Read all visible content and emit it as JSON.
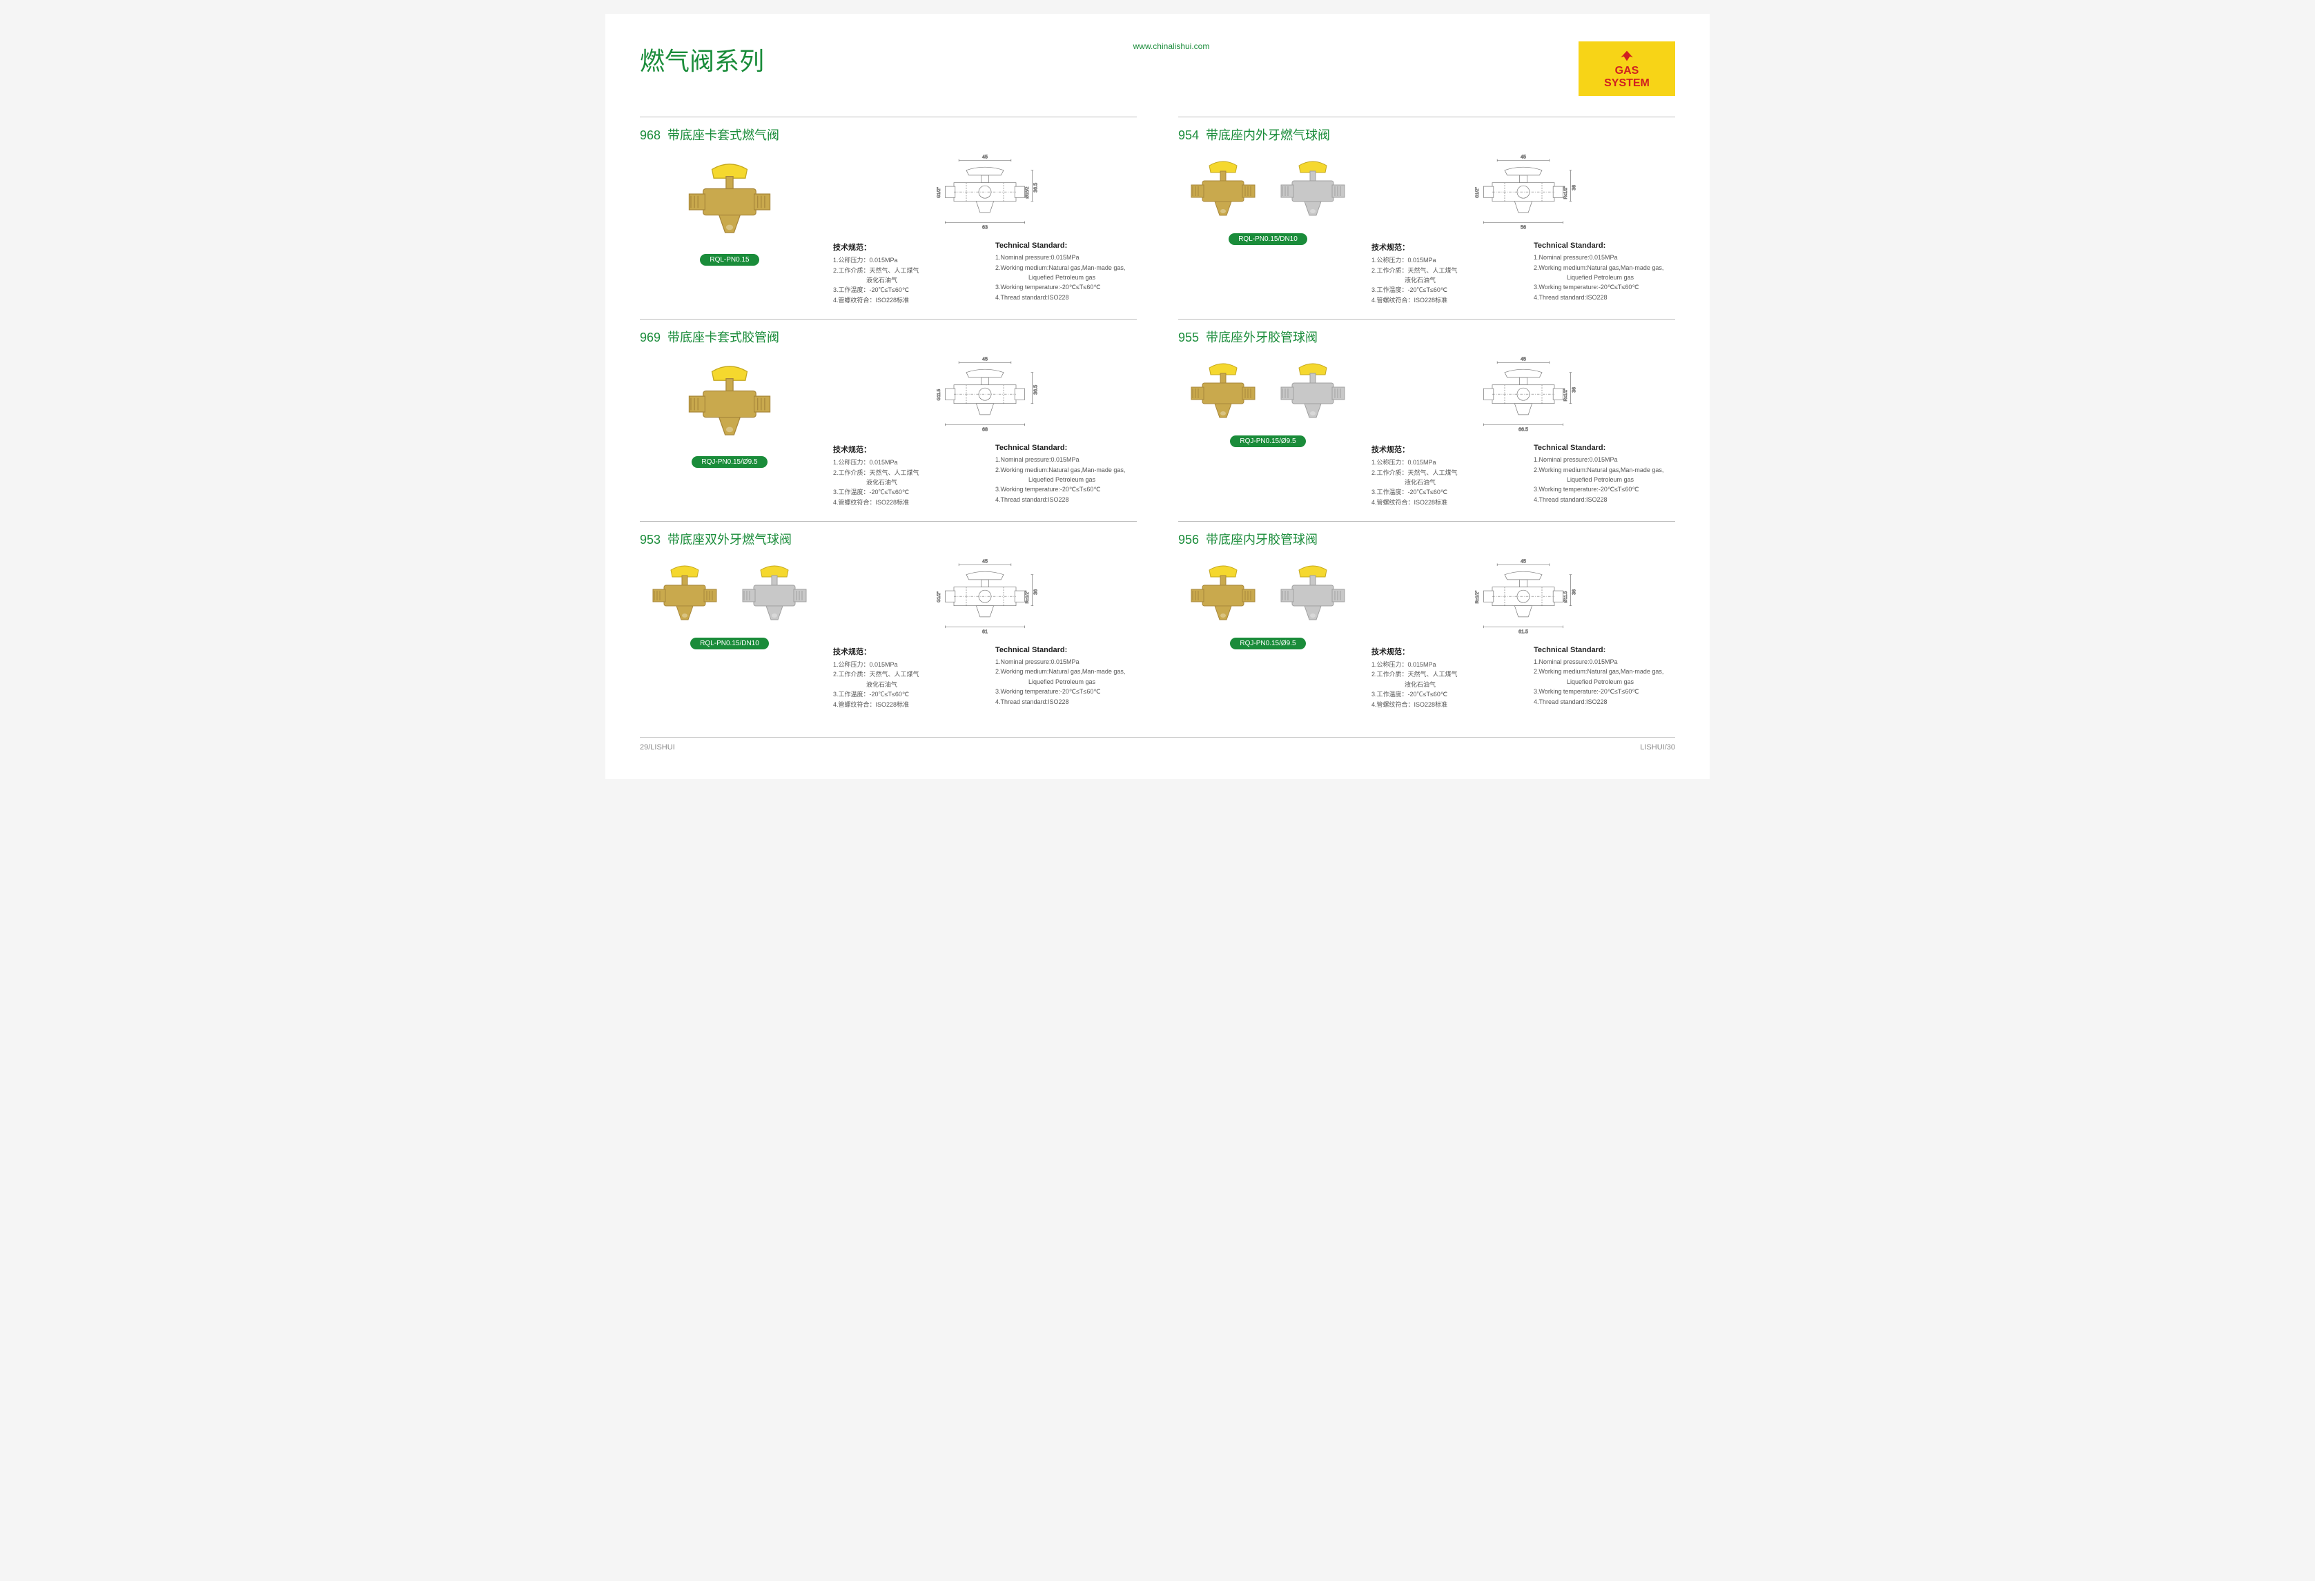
{
  "header": {
    "title_cn": "燃气阀系列",
    "url": "www.chinalishui.com",
    "logo_gas": "GAS",
    "logo_system": "SYSTEM"
  },
  "colors": {
    "green": "#1a8c3a",
    "yellow": "#f7d417",
    "red": "#d02020",
    "brass": "#c9a94d",
    "handle": "#f5d82e",
    "chrome": "#c8c8c8",
    "diagram_stroke": "#7a7a7a"
  },
  "specs_cn": {
    "heading": "技术规范：",
    "line1": "1.公称压力：0.015MPa",
    "line2a": "2.工作介质：天然气、人工煤气",
    "line2b": "液化石油气",
    "line3": "3.工作温度：-20℃≤T≤60℃",
    "line4": "4.管螺纹符合：ISO228标准"
  },
  "specs_en": {
    "heading": "Technical Standard:",
    "line1": "1.Nominal pressure:0.015MPa",
    "line2a": "2.Working medium:Natural gas,Man-made gas,",
    "line2b": "Liquefied Petroleum gas",
    "line3": "3.Working temperature:-20℃≤T≤60℃",
    "line4": "4.Thread standard:ISO228"
  },
  "products": [
    {
      "num": "968",
      "name": "带底座卡套式燃气阀",
      "part": "RQL-PN0.15",
      "photos": [
        "brass"
      ],
      "dim_w": "45",
      "dim_l": "63",
      "dim_h": "36.5",
      "left": "G1/2\"",
      "right": "Ø15/2"
    },
    {
      "num": "954",
      "name": "带底座内外牙燃气球阀",
      "part": "RQL-PN0.15/DN10",
      "photos": [
        "brass",
        "chrome"
      ],
      "dim_w": "45",
      "dim_l": "56",
      "dim_h": "36",
      "left": "G1/2\"",
      "right": "Rc1/2\""
    },
    {
      "num": "969",
      "name": "带底座卡套式胶管阀",
      "part": "RQJ-PN0.15/Ø9.5",
      "photos": [
        "brass"
      ],
      "dim_w": "45",
      "dim_l": "68",
      "dim_h": "36.5",
      "left": "G11.5",
      "right": ""
    },
    {
      "num": "955",
      "name": "带底座外牙胶管球阀",
      "part": "RQJ-PN0.15/Ø9.5",
      "photos": [
        "brass",
        "chrome"
      ],
      "dim_w": "45",
      "dim_l": "66.5",
      "dim_h": "36",
      "left": "",
      "right": "Rc1/2\""
    },
    {
      "num": "953",
      "name": "带底座双外牙燃气球阀",
      "part": "RQL-PN0.15/DN10",
      "photos": [
        "brass",
        "chrome"
      ],
      "dim_w": "45",
      "dim_l": "61",
      "dim_h": "36",
      "left": "G1/2\"",
      "right": "Rc1/2\""
    },
    {
      "num": "956",
      "name": "带底座内牙胶管球阀",
      "part": "RQJ-PN0.15/Ø9.5",
      "photos": [
        "brass",
        "chrome"
      ],
      "dim_w": "45",
      "dim_l": "61.5",
      "dim_h": "36",
      "left": "Rc1/2\"",
      "right": "Ø11.5"
    }
  ],
  "footer": {
    "left": "29/LISHUI",
    "right": "LISHUI/30"
  }
}
